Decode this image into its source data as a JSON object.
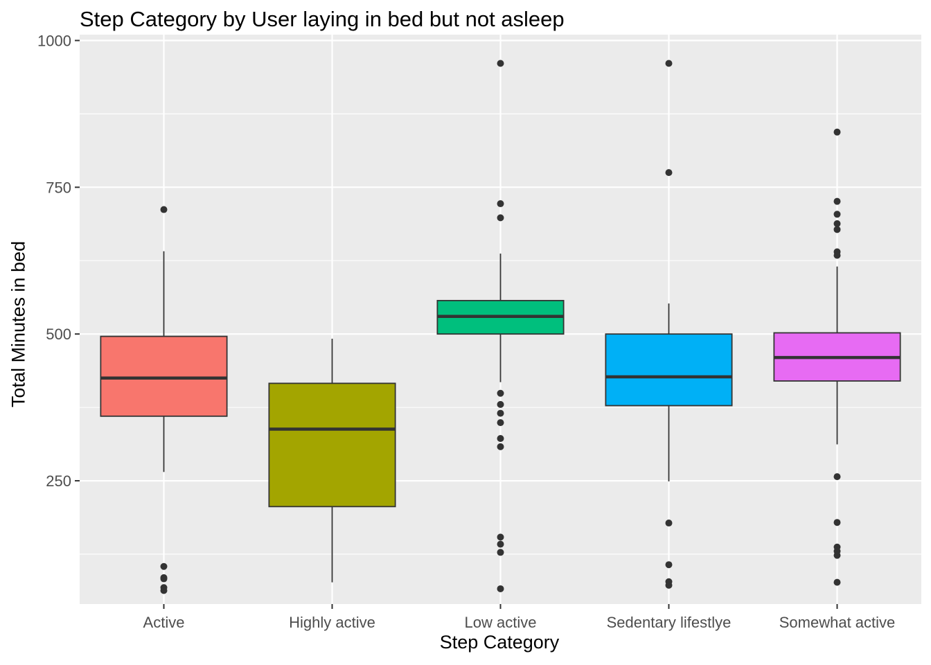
{
  "chart_data": {
    "type": "boxplot",
    "title": "Step Category by User laying in bed but not asleep",
    "xlabel": "Step Category",
    "ylabel": "Total Minutes in bed",
    "ylim": [
      40,
      1010
    ],
    "yticks": [
      250,
      500,
      750,
      1000
    ],
    "grid": true,
    "legend": "none",
    "categories": [
      "Active",
      "Highly active",
      "Low active",
      "Sedentary lifestlye",
      "Somewhat active"
    ],
    "colors": [
      "#F8766D",
      "#A3A500",
      "#00BF7D",
      "#00B0F6",
      "#E76BF3"
    ],
    "boxes": [
      {
        "category": "Active",
        "min": 265,
        "q1": 360,
        "median": 425,
        "q3": 496,
        "max": 641,
        "outliers": [
          712,
          104,
          85,
          83,
          68,
          63
        ]
      },
      {
        "category": "Highly active",
        "min": 77,
        "q1": 206,
        "median": 338,
        "q3": 416,
        "max": 492,
        "outliers": []
      },
      {
        "category": "Low active",
        "min": 418,
        "q1": 500,
        "median": 530,
        "q3": 557,
        "max": 637,
        "outliers": [
          961,
          722,
          698,
          399,
          380,
          365,
          349,
          322,
          308,
          154,
          142,
          128,
          66
        ]
      },
      {
        "category": "Sedentary lifestlye",
        "min": 249,
        "q1": 378,
        "median": 427,
        "q3": 500,
        "max": 552,
        "outliers": [
          961,
          775,
          178,
          107,
          78,
          72
        ]
      },
      {
        "category": "Somewhat active",
        "min": 312,
        "q1": 420,
        "median": 460,
        "q3": 502,
        "max": 615,
        "outliers": [
          844,
          726,
          704,
          688,
          678,
          640,
          634,
          257,
          179,
          137,
          130,
          123,
          77
        ]
      }
    ]
  }
}
